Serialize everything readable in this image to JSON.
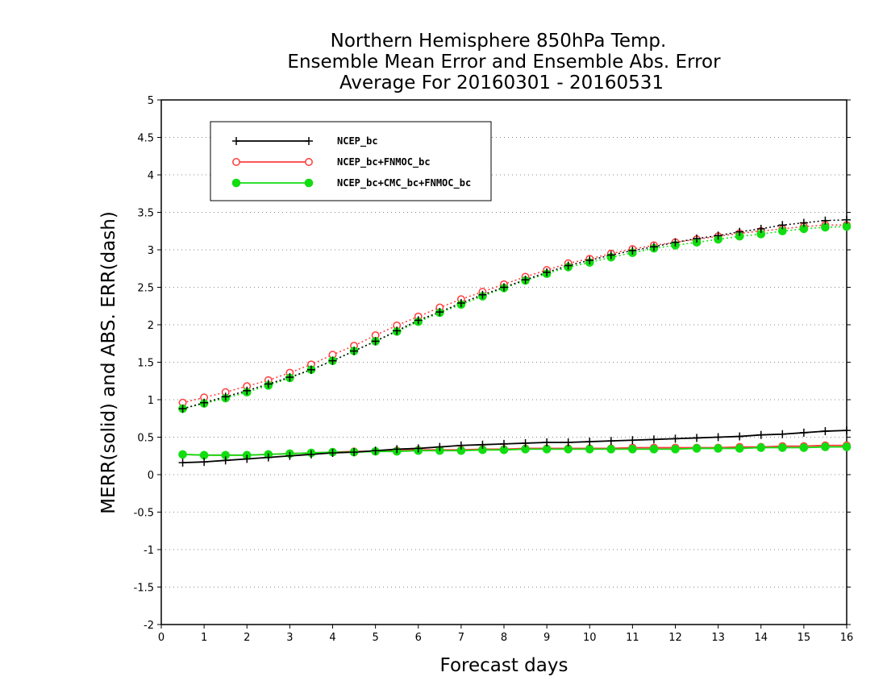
{
  "chart_data": {
    "type": "line",
    "title": [
      "Northern Hemisphere 850hPa Temp.",
      "Ensemble Mean Error and Ensemble Abs. Error",
      "Average For 20160301 - 20160531"
    ],
    "xlabel": "Forecast days",
    "ylabel": "MERR(solid) and ABS. ERR(dash)",
    "xlim": [
      0,
      16
    ],
    "ylim": [
      -2,
      5
    ],
    "xticks": [
      0,
      1,
      2,
      3,
      4,
      5,
      6,
      7,
      8,
      9,
      10,
      11,
      12,
      13,
      14,
      15,
      16
    ],
    "yticks": [
      -2,
      -1.5,
      -1,
      -0.5,
      0,
      0.5,
      1,
      1.5,
      2,
      2.5,
      3,
      3.5,
      4,
      4.5,
      5
    ],
    "grid": "horizontal dotted",
    "legend_position": "top-left",
    "x": [
      0.5,
      1,
      1.5,
      2,
      2.5,
      3,
      3.5,
      4,
      4.5,
      5,
      5.5,
      6,
      6.5,
      7,
      7.5,
      8,
      8.5,
      9,
      9.5,
      10,
      10.5,
      11,
      11.5,
      12,
      12.5,
      13,
      13.5,
      14,
      14.5,
      15,
      15.5,
      16
    ],
    "series": [
      {
        "name": "NCEP_bc",
        "color": "#000000",
        "marker": "plus",
        "merr": [
          0.16,
          0.17,
          0.19,
          0.21,
          0.23,
          0.25,
          0.27,
          0.29,
          0.3,
          0.32,
          0.34,
          0.35,
          0.37,
          0.39,
          0.4,
          0.41,
          0.42,
          0.43,
          0.43,
          0.44,
          0.45,
          0.46,
          0.47,
          0.48,
          0.49,
          0.5,
          0.51,
          0.53,
          0.54,
          0.56,
          0.58,
          0.59
        ],
        "abs_err": [
          0.88,
          0.96,
          1.04,
          1.12,
          1.21,
          1.3,
          1.4,
          1.52,
          1.65,
          1.78,
          1.92,
          2.06,
          2.17,
          2.29,
          2.4,
          2.5,
          2.6,
          2.7,
          2.79,
          2.86,
          2.93,
          2.99,
          3.04,
          3.1,
          3.15,
          3.19,
          3.24,
          3.28,
          3.33,
          3.36,
          3.39,
          3.4
        ]
      },
      {
        "name": "NCEP_bc+FNMOC_bc",
        "color": "#ff3b3b",
        "marker": "open-circle",
        "merr": [
          0.27,
          0.26,
          0.26,
          0.26,
          0.27,
          0.28,
          0.29,
          0.3,
          0.31,
          0.31,
          0.32,
          0.33,
          0.33,
          0.33,
          0.34,
          0.34,
          0.35,
          0.35,
          0.35,
          0.35,
          0.35,
          0.36,
          0.36,
          0.36,
          0.36,
          0.36,
          0.37,
          0.37,
          0.38,
          0.38,
          0.39,
          0.39
        ],
        "abs_err": [
          0.96,
          1.03,
          1.1,
          1.18,
          1.26,
          1.36,
          1.47,
          1.6,
          1.72,
          1.86,
          1.99,
          2.11,
          2.23,
          2.34,
          2.44,
          2.54,
          2.64,
          2.73,
          2.82,
          2.88,
          2.95,
          3.01,
          3.06,
          3.1,
          3.14,
          3.18,
          3.22,
          3.25,
          3.28,
          3.31,
          3.33,
          3.33
        ]
      },
      {
        "name": "NCEP_bc+CMC_bc+FNMOC_bc",
        "color": "#11dd11",
        "marker": "filled-circle",
        "merr": [
          0.27,
          0.26,
          0.26,
          0.26,
          0.27,
          0.28,
          0.29,
          0.3,
          0.3,
          0.31,
          0.31,
          0.32,
          0.32,
          0.32,
          0.33,
          0.33,
          0.34,
          0.34,
          0.34,
          0.34,
          0.34,
          0.34,
          0.34,
          0.34,
          0.35,
          0.35,
          0.35,
          0.36,
          0.36,
          0.36,
          0.37,
          0.37
        ],
        "abs_err": [
          0.88,
          0.95,
          1.02,
          1.1,
          1.19,
          1.29,
          1.4,
          1.52,
          1.65,
          1.78,
          1.91,
          2.04,
          2.16,
          2.27,
          2.38,
          2.49,
          2.59,
          2.68,
          2.77,
          2.83,
          2.9,
          2.96,
          3.02,
          3.06,
          3.1,
          3.14,
          3.18,
          3.21,
          3.25,
          3.28,
          3.3,
          3.31
        ]
      }
    ]
  }
}
